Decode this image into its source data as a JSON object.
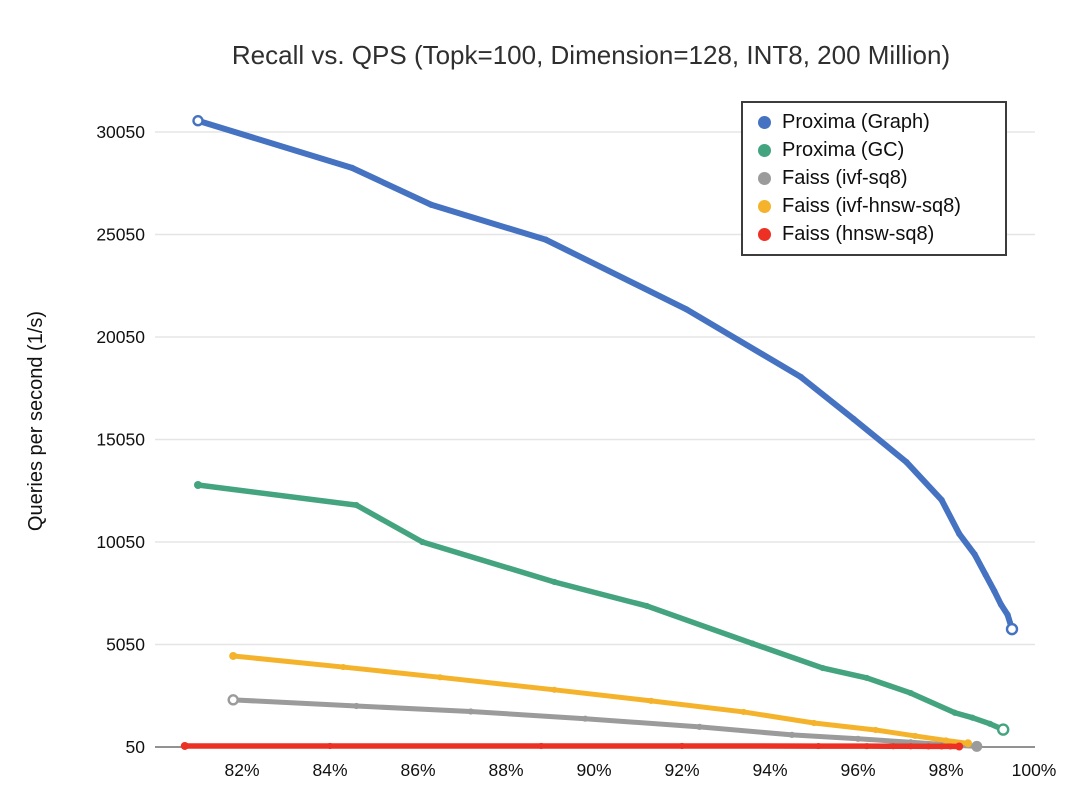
{
  "page": {
    "background": "#ffffff"
  },
  "chart_data": {
    "type": "line",
    "title": "Recall vs. QPS (Topk=100, Dimension=128, INT8, 200 Million)",
    "xlabel": "",
    "ylabel": "Queries per second (1/s)",
    "grid": "horizontal",
    "legend_position": "top-right",
    "grid_color": "#e5e5e5",
    "axis_line_color": "#6e6e6e",
    "tick_label_color": "#111111",
    "title_color": "#2f2f2f",
    "x_tick_labels": [
      "82%",
      "84%",
      "86%",
      "88%",
      "90%",
      "92%",
      "94%",
      "96%",
      "98%",
      "100%"
    ],
    "x_tick_values": [
      82,
      84,
      86,
      88,
      90,
      92,
      94,
      96,
      98,
      100
    ],
    "y_tick_labels": [
      "50",
      "5050",
      "10050",
      "15050",
      "20050",
      "25050",
      "30050"
    ],
    "y_tick_values": [
      50,
      5050,
      10050,
      15050,
      20050,
      25050,
      30050
    ],
    "x_range": [
      80.0,
      100.0
    ],
    "y_range": [
      50,
      31850
    ],
    "x_unit": "recall %",
    "y_unit": "queries per second",
    "series": [
      {
        "name": "Proxima (Graph)",
        "color": "#4573c2",
        "line_width": 6,
        "start_marker": "open",
        "end_marker": "open",
        "points": [
          [
            81.0,
            30600
          ],
          [
            84.5,
            28300
          ],
          [
            86.3,
            26500
          ],
          [
            88.9,
            24800
          ],
          [
            92.1,
            21400
          ],
          [
            94.7,
            18100
          ],
          [
            95.9,
            16050
          ],
          [
            97.1,
            13950
          ],
          [
            97.9,
            12100
          ],
          [
            98.3,
            10450
          ],
          [
            98.65,
            9450
          ],
          [
            98.9,
            8450
          ],
          [
            99.1,
            7650
          ],
          [
            99.25,
            7000
          ],
          [
            99.4,
            6500
          ],
          [
            99.5,
            5800
          ]
        ]
      },
      {
        "name": "Proxima (GC)",
        "color": "#44a47f",
        "line_width": 5.5,
        "start_marker": "filled",
        "end_marker": "open",
        "points": [
          [
            81.0,
            12830
          ],
          [
            84.6,
            11850
          ],
          [
            86.1,
            10050
          ],
          [
            89.1,
            8100
          ],
          [
            91.2,
            6930
          ],
          [
            93.6,
            5100
          ],
          [
            95.2,
            3900
          ],
          [
            96.2,
            3420
          ],
          [
            97.2,
            2680
          ],
          [
            98.2,
            1720
          ],
          [
            98.6,
            1480
          ],
          [
            99.0,
            1180
          ],
          [
            99.3,
            900
          ]
        ]
      },
      {
        "name": "Faiss (ivf-sq8)",
        "color": "#9b9b9b",
        "line_width": 5,
        "start_marker": "open",
        "end_marker": "blob",
        "points": [
          [
            81.8,
            2350
          ],
          [
            84.6,
            2050
          ],
          [
            87.2,
            1780
          ],
          [
            89.8,
            1430
          ],
          [
            92.4,
            1030
          ],
          [
            94.5,
            640
          ],
          [
            96.0,
            450
          ],
          [
            97.2,
            280
          ],
          [
            98.1,
            150
          ],
          [
            98.7,
            80
          ]
        ]
      },
      {
        "name": "Faiss (ivf-hnsw-sq8)",
        "color": "#f4b32b",
        "line_width": 5,
        "start_marker": "filled",
        "end_marker": "filled",
        "points": [
          [
            81.8,
            4490
          ],
          [
            84.3,
            3950
          ],
          [
            86.5,
            3450
          ],
          [
            89.1,
            2840
          ],
          [
            91.3,
            2300
          ],
          [
            93.4,
            1760
          ],
          [
            95.0,
            1220
          ],
          [
            96.4,
            880
          ],
          [
            97.3,
            590
          ],
          [
            98.0,
            370
          ],
          [
            98.5,
            230
          ]
        ]
      },
      {
        "name": "Faiss (hnsw-sq8)",
        "color": "#ec3023",
        "line_width": 5.5,
        "start_marker": "filled",
        "end_marker": "filled",
        "points": [
          [
            80.7,
            100
          ],
          [
            84.0,
            100
          ],
          [
            88.8,
            100
          ],
          [
            92.0,
            100
          ],
          [
            95.1,
            95
          ],
          [
            96.2,
            90
          ],
          [
            96.8,
            88
          ],
          [
            97.2,
            85
          ],
          [
            97.6,
            82
          ],
          [
            97.9,
            80
          ],
          [
            98.1,
            78
          ],
          [
            98.3,
            75
          ]
        ]
      }
    ]
  }
}
